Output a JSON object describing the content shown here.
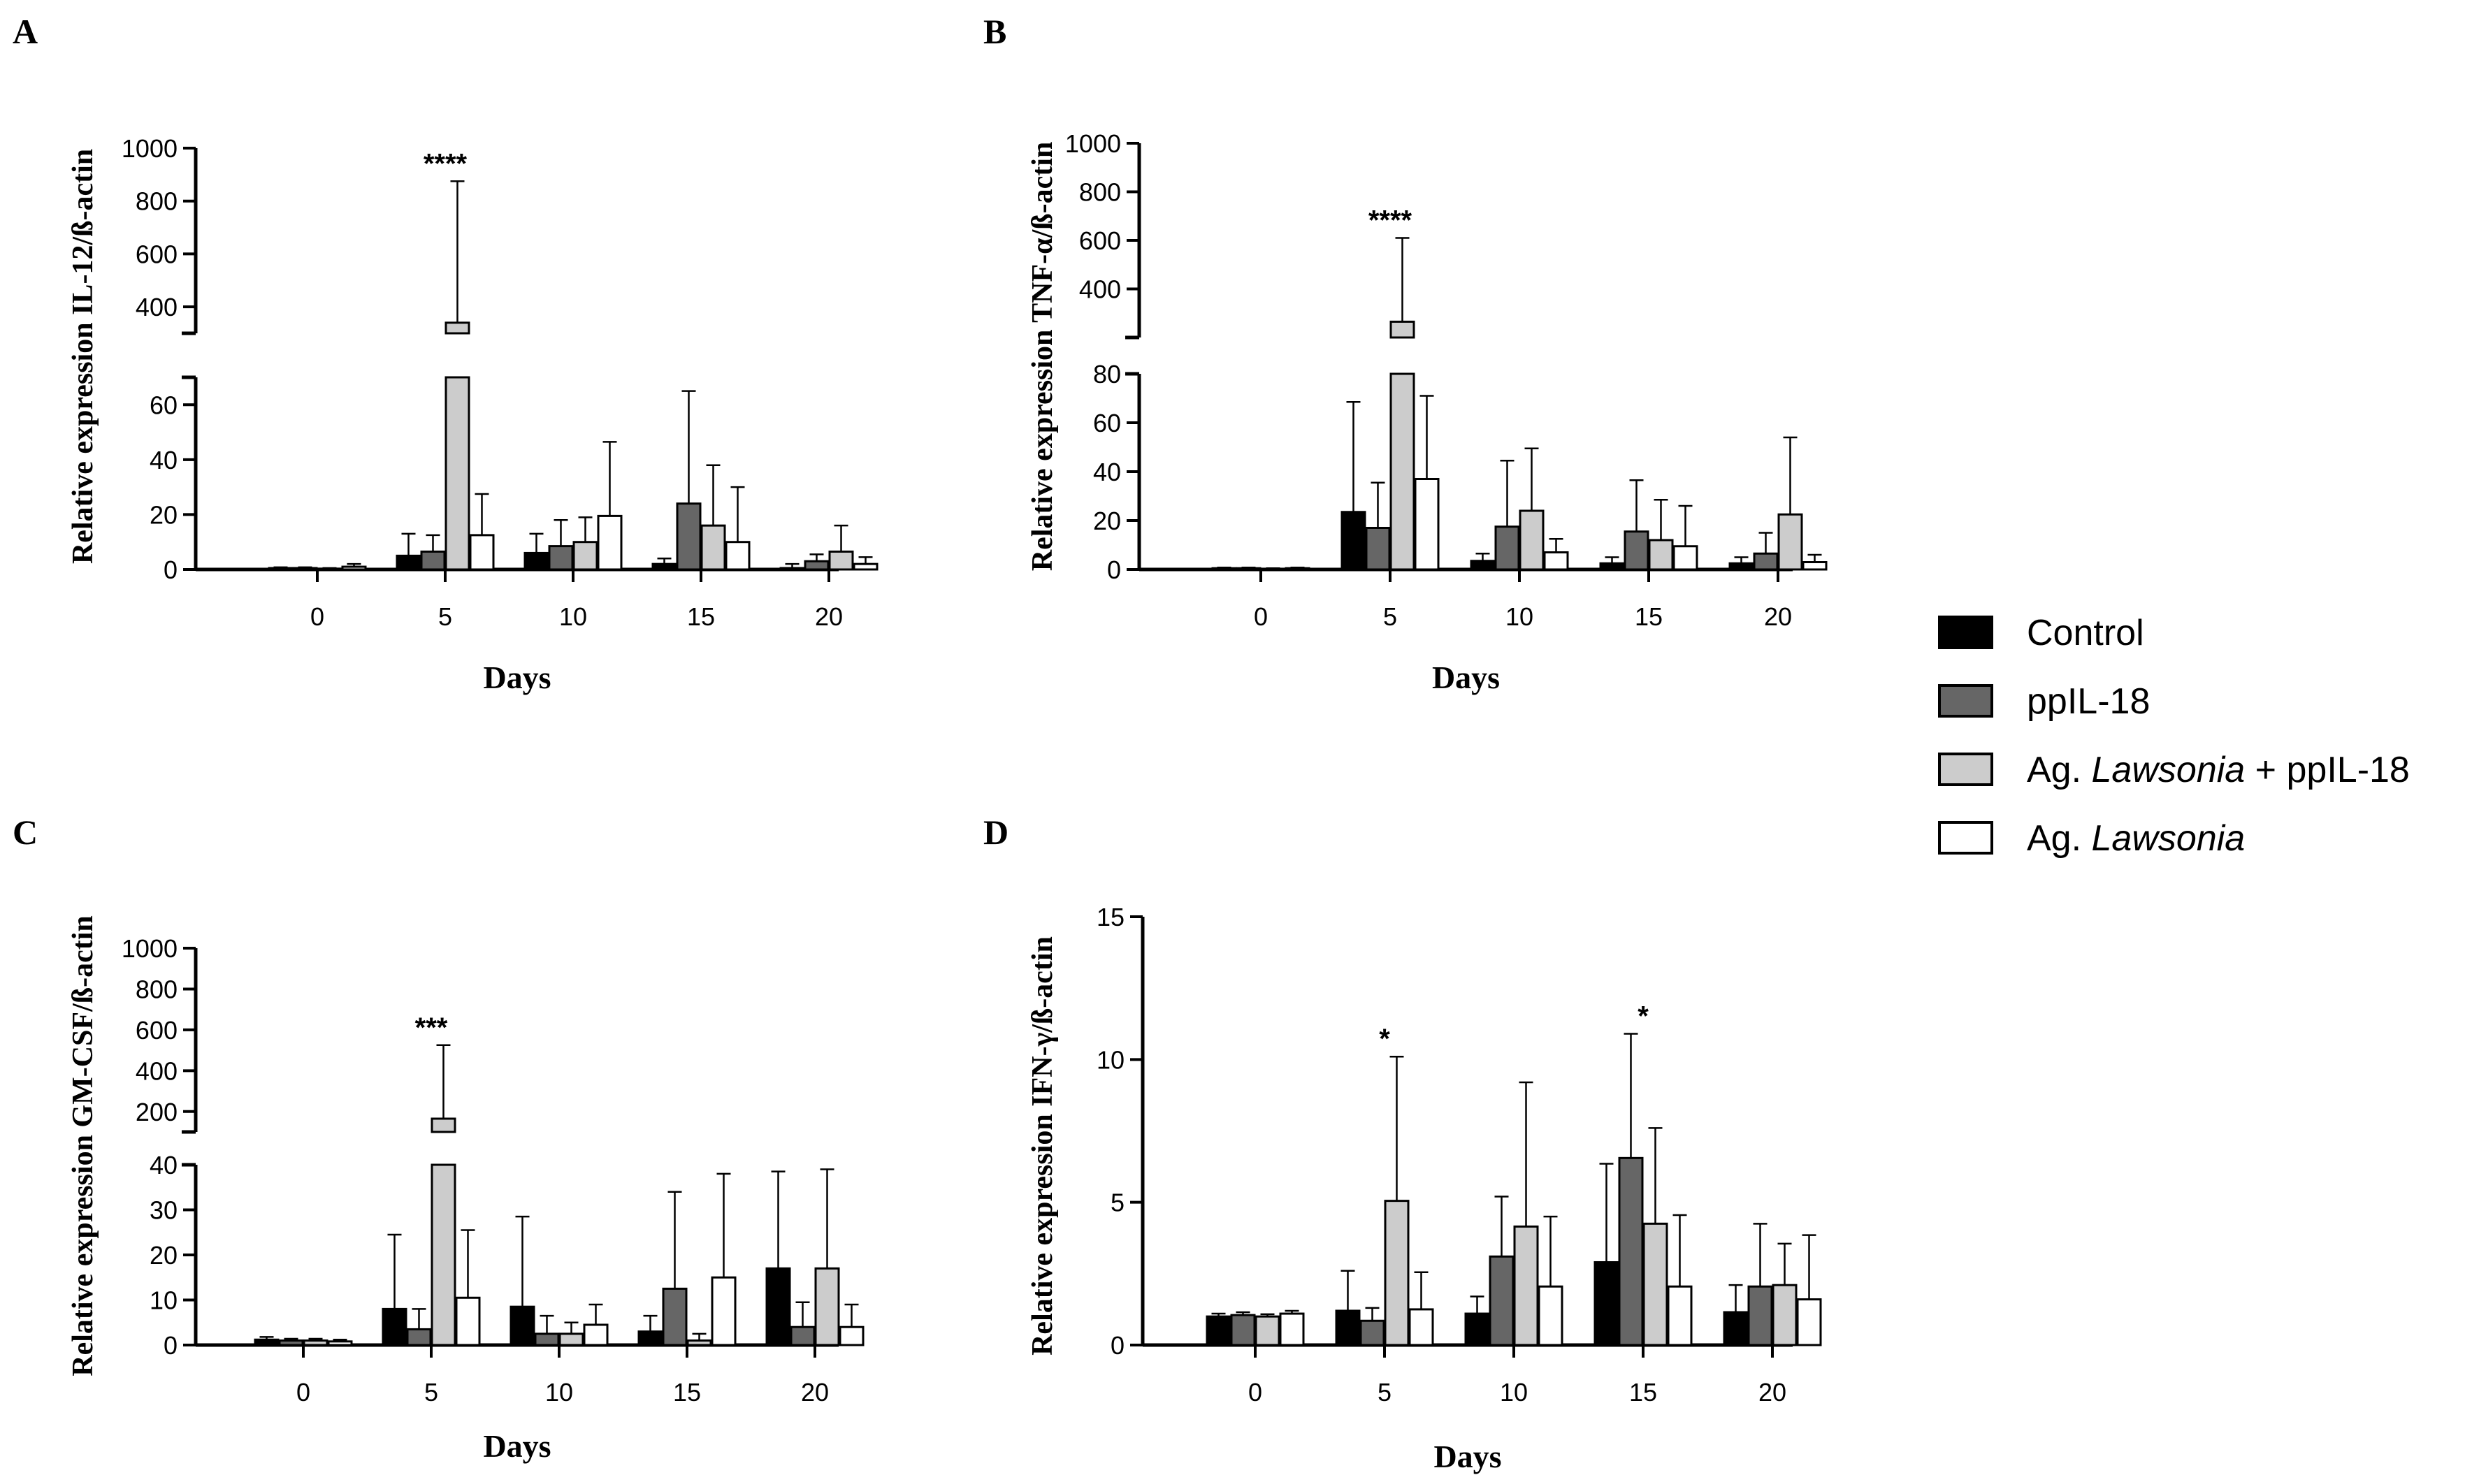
{
  "legend": {
    "items": [
      {
        "key": "control",
        "prefix": "Control",
        "italic": "",
        "suffix": "",
        "color": "#000000"
      },
      {
        "key": "ppil18",
        "prefix": "ppIL-18",
        "italic": "",
        "suffix": "",
        "color": "#666666"
      },
      {
        "key": "ag_ppil18",
        "prefix": "Ag. ",
        "italic": "Lawsonia",
        "suffix": " + ppIL-18",
        "color": "#cccccc"
      },
      {
        "key": "ag",
        "prefix": "Ag. ",
        "italic": "Lawsonia",
        "suffix": "",
        "color": "#ffffff"
      }
    ]
  },
  "chart_data": [
    {
      "panel": "A",
      "type": "bar",
      "title": "",
      "xlabel": "Days",
      "ylabel": "Relative expression IL-12/ß-actin",
      "categories": [
        "0",
        "5",
        "10",
        "15",
        "20"
      ],
      "y_lower_range": [
        0,
        70
      ],
      "y_upper_range": [
        300,
        1000
      ],
      "y_lower_ticks": [
        "0",
        "20",
        "40",
        "60"
      ],
      "y_upper_ticks": [
        "400",
        "600",
        "800",
        "1000"
      ],
      "series": [
        {
          "name": "Control",
          "values": [
            0.5,
            5,
            6,
            2,
            0.5
          ],
          "errors": [
            0.3,
            8,
            7,
            2,
            1.5
          ]
        },
        {
          "name": "ppIL-18",
          "values": [
            0.5,
            6.5,
            8.5,
            24,
            3
          ],
          "errors": [
            0.3,
            6,
            9.5,
            41,
            2.5
          ]
        },
        {
          "name": "Ag. Lawsonia + ppIL-18",
          "values": [
            0.3,
            340,
            10,
            16,
            6.5
          ],
          "errors": [
            0.2,
            535,
            9,
            22,
            9.5
          ]
        },
        {
          "name": "Ag. Lawsonia",
          "values": [
            1,
            12.5,
            19.5,
            10,
            2
          ],
          "errors": [
            1,
            15,
            27,
            20,
            2.5
          ]
        }
      ],
      "significance": [
        {
          "category": "5",
          "label": "****"
        }
      ]
    },
    {
      "panel": "B",
      "type": "bar",
      "title": "",
      "xlabel": "Days",
      "ylabel": "Relative expression TNF-α/ß-actin",
      "categories": [
        "0",
        "5",
        "10",
        "15",
        "20"
      ],
      "y_lower_range": [
        0,
        80
      ],
      "y_upper_range": [
        200,
        1000
      ],
      "y_lower_ticks": [
        "0",
        "20",
        "40",
        "60",
        "80"
      ],
      "y_upper_ticks": [
        "400",
        "600",
        "800",
        "1000"
      ],
      "series": [
        {
          "name": "Control",
          "values": [
            0.5,
            23.5,
            3.5,
            2.5,
            2.5
          ],
          "errors": [
            0.3,
            45,
            3,
            2.5,
            2.5
          ]
        },
        {
          "name": "ppIL-18",
          "values": [
            0.5,
            17,
            17.5,
            15.5,
            6.5
          ],
          "errors": [
            0.3,
            18.5,
            27,
            21,
            8.5
          ]
        },
        {
          "name": "Ag. Lawsonia + ppIL-18",
          "values": [
            0.3,
            265,
            24,
            12,
            22.5
          ],
          "errors": [
            0.2,
            345,
            25.5,
            16.5,
            31.5
          ]
        },
        {
          "name": "Ag. Lawsonia",
          "values": [
            0.5,
            37,
            7,
            9.5,
            3
          ],
          "errors": [
            0.3,
            34,
            5.5,
            16.5,
            3
          ]
        }
      ],
      "significance": [
        {
          "category": "5",
          "label": "****"
        }
      ]
    },
    {
      "panel": "C",
      "type": "bar",
      "title": "",
      "xlabel": "Days",
      "ylabel": "Relative expression GM-CSF/ß-actin",
      "categories": [
        "0",
        "5",
        "10",
        "15",
        "20"
      ],
      "y_lower_range": [
        0,
        40
      ],
      "y_upper_range": [
        100,
        1000
      ],
      "y_lower_ticks": [
        "0",
        "10",
        "20",
        "30",
        "40"
      ],
      "y_upper_ticks": [
        "200",
        "400",
        "600",
        "800",
        "1000"
      ],
      "series": [
        {
          "name": "Control",
          "values": [
            1.2,
            8,
            8.5,
            3,
            17
          ],
          "errors": [
            0.6,
            16.5,
            20,
            3.5,
            21.5
          ]
        },
        {
          "name": "ppIL-18",
          "values": [
            1,
            3.5,
            2.5,
            12.5,
            4
          ],
          "errors": [
            0.4,
            4.5,
            4,
            21.5,
            5.5
          ]
        },
        {
          "name": "Ag. Lawsonia + ppIL-18",
          "values": [
            1,
            165,
            2.5,
            1,
            17
          ],
          "errors": [
            0.4,
            360,
            2.5,
            1.5,
            22
          ]
        },
        {
          "name": "Ag. Lawsonia",
          "values": [
            0.8,
            10.5,
            4.5,
            15,
            4
          ],
          "errors": [
            0.4,
            15,
            4.5,
            23,
            5
          ]
        }
      ],
      "significance": [
        {
          "category": "5",
          "label": "***"
        }
      ]
    },
    {
      "panel": "D",
      "type": "bar",
      "title": "",
      "xlabel": "Days",
      "ylabel": "Relative expression IFN-γ/ß-actin",
      "categories": [
        "0",
        "5",
        "10",
        "15",
        "20"
      ],
      "ylim": [
        0,
        15
      ],
      "y_ticks": [
        "0",
        "5",
        "10",
        "15"
      ],
      "series": [
        {
          "name": "Control",
          "values": [
            1,
            1.2,
            1.1,
            2.9,
            1.15
          ],
          "errors": [
            0.1,
            1.4,
            0.6,
            3.45,
            0.95
          ]
        },
        {
          "name": "ppIL-18",
          "values": [
            1.05,
            0.85,
            3.1,
            6.55,
            2.05
          ],
          "errors": [
            0.1,
            0.45,
            2.1,
            4.35,
            2.2
          ]
        },
        {
          "name": "Ag. Lawsonia + ppIL-18",
          "values": [
            1,
            5.05,
            4.15,
            4.25,
            2.1
          ],
          "errors": [
            0.08,
            5.05,
            5.05,
            3.35,
            1.45
          ]
        },
        {
          "name": "Ag. Lawsonia",
          "values": [
            1.1,
            1.25,
            2.05,
            2.05,
            1.6
          ],
          "errors": [
            0.1,
            1.3,
            2.45,
            2.5,
            2.25
          ]
        }
      ],
      "significance": [
        {
          "category": "5",
          "label": "*"
        },
        {
          "category": "15",
          "label": "*"
        }
      ]
    }
  ]
}
